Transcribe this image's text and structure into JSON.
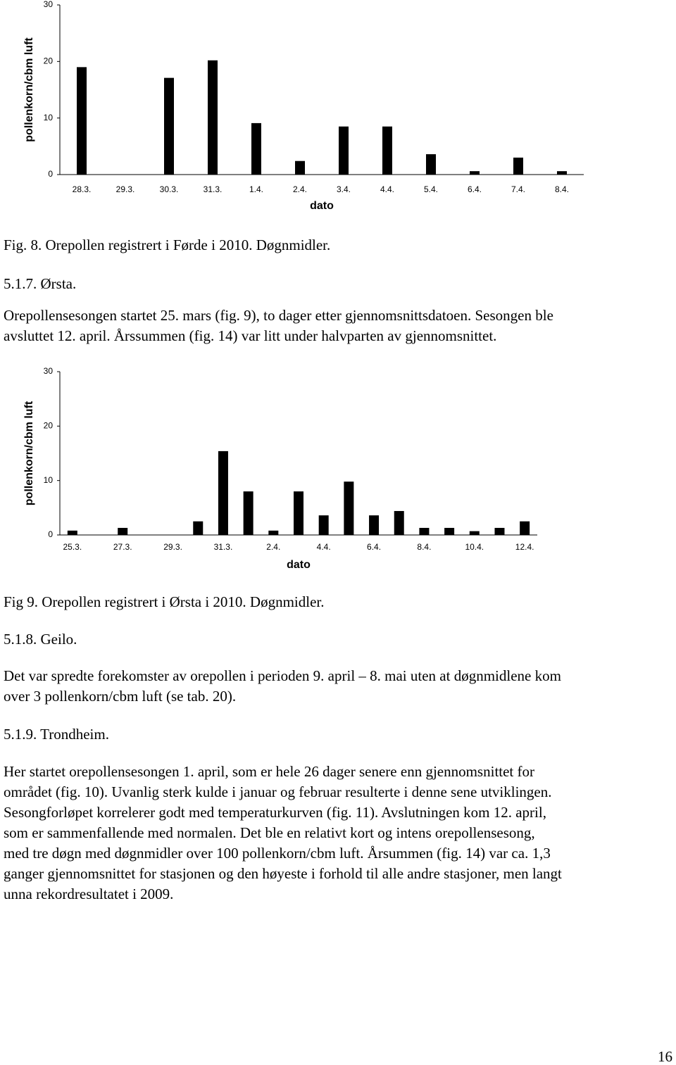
{
  "chart_data": [
    {
      "type": "bar",
      "y_label": "pollenkorn/cbm luft",
      "x_label": "dato",
      "categories": [
        "28.3.",
        "29.3.",
        "30.3.",
        "31.3.",
        "1.4.",
        "2.4.",
        "3.4.",
        "4.4.",
        "5.4.",
        "6.4.",
        "7.4.",
        "8.4."
      ],
      "values": [
        19,
        0,
        17.1,
        20.2,
        9.1,
        2.4,
        8.5,
        8.5,
        3.6,
        0.6,
        3.0,
        0.6
      ],
      "color": "#000000",
      "ylim": [
        0,
        30
      ],
      "yticks": [
        0,
        10,
        20,
        30
      ],
      "grid": false
    },
    {
      "type": "bar",
      "y_label": "pollenkorn/cbm luft",
      "x_label": "dato",
      "categories": [
        "25.3.",
        null,
        "27.3.",
        null,
        "29.3.",
        null,
        "31.3.",
        null,
        "2.4.",
        null,
        "4.4.",
        null,
        "6.4.",
        null,
        "8.4.",
        null,
        "10.4.",
        null,
        "12.4."
      ],
      "values": [
        0.8,
        0,
        1.3,
        0,
        0,
        2.5,
        15.4,
        8.0,
        0.8,
        8.0,
        3.6,
        9.8,
        3.6,
        4.4,
        1.3,
        1.3,
        0.7,
        1.3,
        2.5
      ],
      "color": "#000000",
      "ylim": [
        0,
        30
      ],
      "yticks": [
        0,
        10,
        20,
        30
      ],
      "grid": false
    }
  ],
  "captions": [
    "Fig. 8. Orepollen registrert i Førde i 2010. Døgnmidler.",
    "Fig 9. Orepollen registrert i Ørsta i 2010. Døgnmidler."
  ],
  "headings": [
    "5.1.7. Ørsta.",
    "5.1.8. Geilo.",
    "5.1.9. Trondheim."
  ],
  "paragraphs": [
    [
      "Orepollensesongen startet 25. mars (fig. 9), to dager etter gjennomsnittsdatoen. Sesongen ble",
      "avsluttet 12. april. Årssummen (fig. 14) var litt under halvparten av gjennomsnittet."
    ],
    [
      "Det var spredte forekomster av orepollen i perioden 9. april – 8. mai uten at døgnmidlene kom",
      "over 3 pollenkorn/cbm luft (se tab. 20)."
    ],
    [
      "Her startet orepollensesongen 1. april, som er hele 26 dager senere enn gjennomsnittet for",
      "området (fig. 10). Uvanlig sterk kulde i januar og februar resulterte i denne sene utviklingen.",
      "Sesongforløpet korrelerer godt med temperaturkurven (fig. 11). Avslutningen kom 12. april,",
      "som er sammenfallende med normalen. Det ble en relativt kort og intens orepollensesong,",
      "med  tre døgn med døgnmidler over 100 pollenkorn/cbm luft. Årsummen (fig. 14) var ca. 1,3",
      "ganger gjennomsnittet for stasjonen og den høyeste i forhold til alle andre stasjoner, men langt",
      "unna rekordresultatet i 2009."
    ]
  ],
  "page_number": "16"
}
